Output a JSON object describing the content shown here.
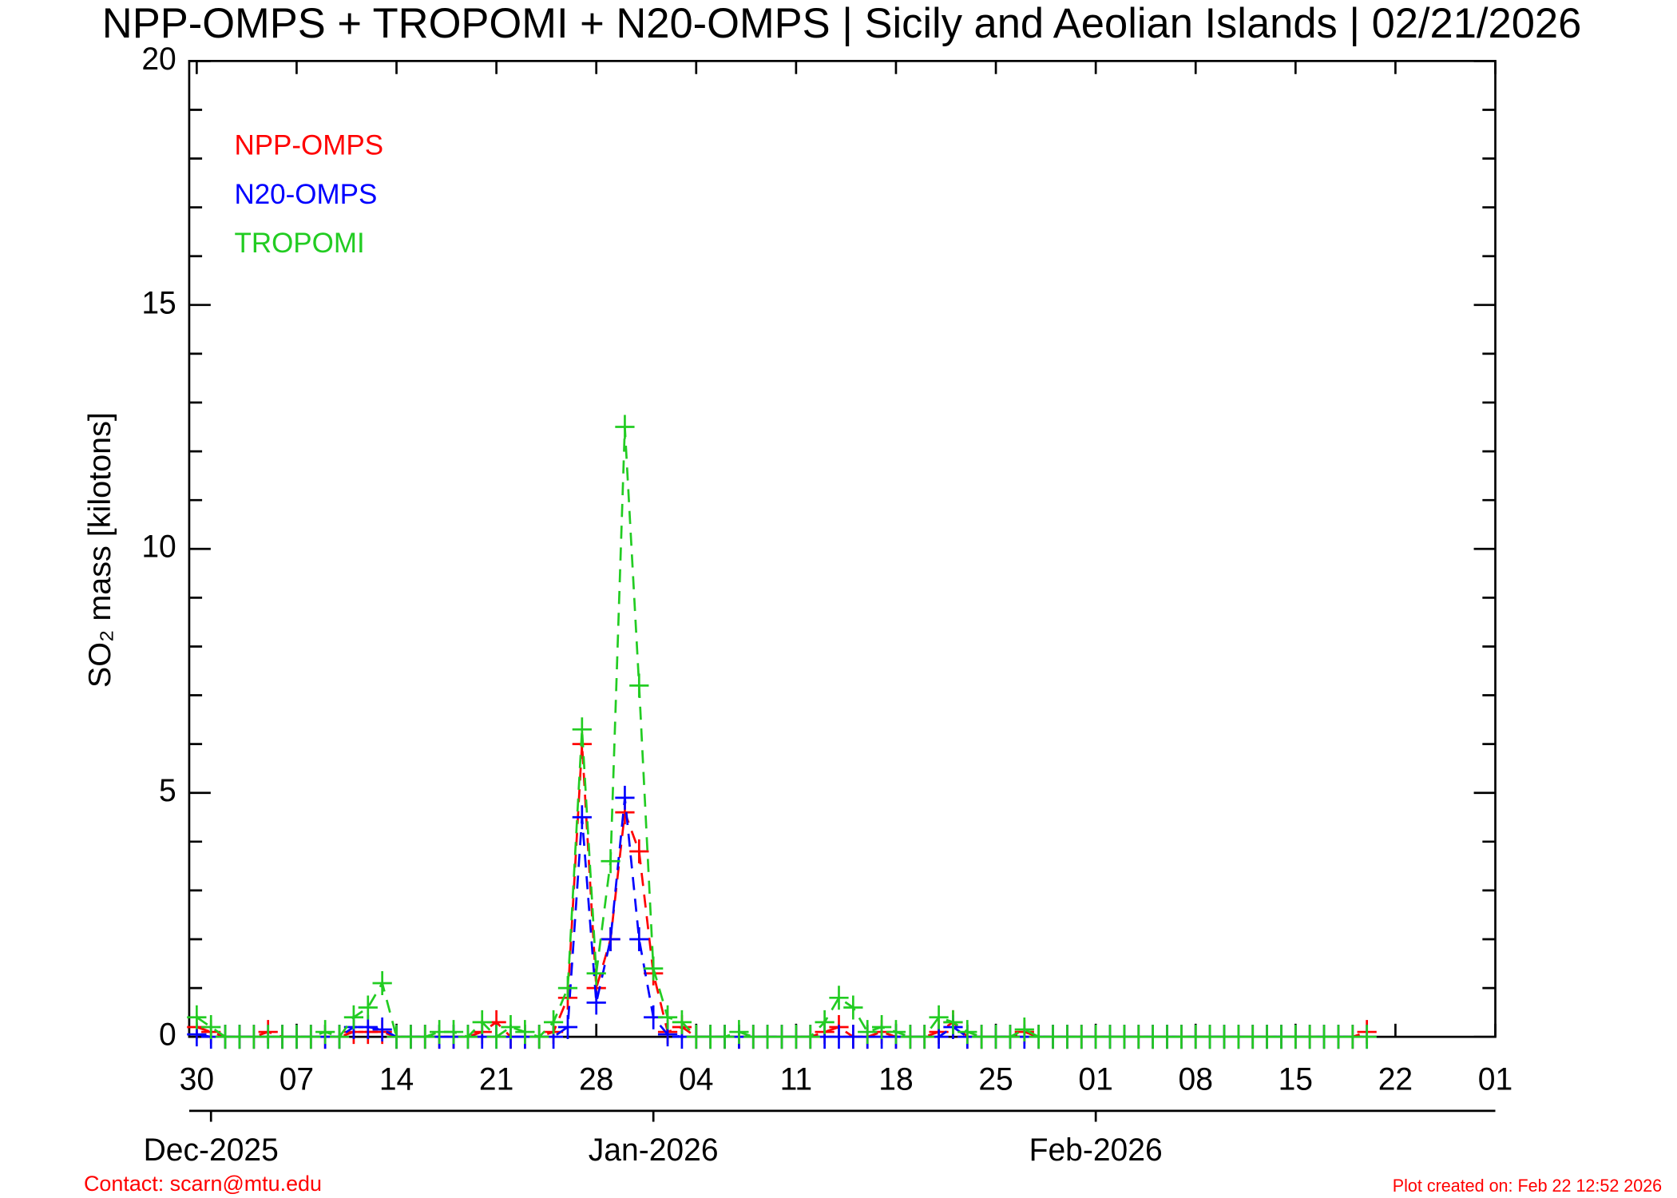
{
  "chart_data": {
    "type": "line",
    "title": "NPP-OMPS + TROPOMI + N20-OMPS | Sicily and Aeolian Islands | 02/21/2026",
    "y_label": "SO₂ mass [kilotons]",
    "contact": "Contact: scarn@mtu.edu",
    "created": "Plot created on: Feb 22 12:52 2026",
    "x": [
      "2025-11-30",
      "2025-12-01",
      "2025-12-02",
      "2025-12-03",
      "2025-12-04",
      "2025-12-05",
      "2025-12-06",
      "2025-12-07",
      "2025-12-08",
      "2025-12-09",
      "2025-12-10",
      "2025-12-11",
      "2025-12-12",
      "2025-12-13",
      "2025-12-14",
      "2025-12-15",
      "2025-12-16",
      "2025-12-17",
      "2025-12-18",
      "2025-12-19",
      "2025-12-20",
      "2025-12-21",
      "2025-12-22",
      "2025-12-23",
      "2025-12-24",
      "2025-12-25",
      "2025-12-26",
      "2025-12-27",
      "2025-12-28",
      "2025-12-29",
      "2025-12-30",
      "2025-12-31",
      "2026-01-01",
      "2026-01-02",
      "2026-01-03",
      "2026-01-04",
      "2026-01-05",
      "2026-01-06",
      "2026-01-07",
      "2026-01-08",
      "2026-01-09",
      "2026-01-10",
      "2026-01-11",
      "2026-01-12",
      "2026-01-13",
      "2026-01-14",
      "2026-01-15",
      "2026-01-16",
      "2026-01-17",
      "2026-01-18",
      "2026-01-19",
      "2026-01-20",
      "2026-01-21",
      "2026-01-22",
      "2026-01-23",
      "2026-01-24",
      "2026-01-25",
      "2026-01-26",
      "2026-01-27",
      "2026-01-28",
      "2026-01-29",
      "2026-01-30",
      "2026-01-31",
      "2026-02-01",
      "2026-02-02",
      "2026-02-03",
      "2026-02-04",
      "2026-02-05",
      "2026-02-06",
      "2026-02-07",
      "2026-02-08",
      "2026-02-09",
      "2026-02-10",
      "2026-02-11",
      "2026-02-12",
      "2026-02-13",
      "2026-02-14",
      "2026-02-15",
      "2026-02-16",
      "2026-02-17",
      "2026-02-18",
      "2026-02-19",
      "2026-02-20"
    ],
    "series": [
      {
        "name": "NPP-OMPS",
        "color": "#ff0000",
        "values": [
          0.2,
          0.1,
          0,
          0,
          0,
          0.1,
          0,
          0,
          0,
          0,
          0,
          0.1,
          0.1,
          0.1,
          0,
          0,
          0,
          0,
          0,
          0,
          0.1,
          0.3,
          0,
          0,
          0,
          0.1,
          0.8,
          6.0,
          1.0,
          2.0,
          4.6,
          3.8,
          1.3,
          0.1,
          0.2,
          0,
          0,
          0,
          0,
          0,
          0,
          0,
          0,
          0,
          0.1,
          0.2,
          0,
          0,
          0.1,
          0,
          0,
          0,
          0.1,
          0.3,
          0,
          0,
          0,
          0,
          0.1,
          0,
          0,
          0,
          0,
          0,
          0,
          0,
          0,
          0,
          0,
          0,
          0,
          0,
          0,
          0,
          0,
          0,
          0,
          0,
          0,
          0,
          0,
          0,
          0.1
        ]
      },
      {
        "name": "N20-OMPS",
        "color": "#0000ff",
        "values": [
          0.05,
          0,
          0,
          0,
          0,
          0,
          0,
          0,
          0,
          0,
          0,
          0.2,
          0.2,
          0.15,
          0,
          0,
          0,
          0,
          0,
          0,
          0,
          0,
          0,
          0,
          0,
          0,
          0.2,
          4.5,
          0.7,
          2.0,
          4.9,
          2.0,
          0.4,
          0.05,
          0,
          0,
          0,
          0,
          0,
          0,
          0,
          0,
          0,
          0,
          0,
          0,
          0,
          0,
          0,
          0,
          0,
          0,
          0,
          0.2,
          0,
          0,
          0,
          0,
          0,
          0,
          0,
          0,
          0,
          0,
          0,
          0,
          0,
          0,
          0,
          0,
          0,
          0,
          0,
          0,
          0,
          0,
          0,
          0,
          0,
          0,
          0,
          0,
          0
        ]
      },
      {
        "name": "TROPOMI",
        "color": "#22cc22",
        "values": [
          0.4,
          0.2,
          0,
          0,
          0,
          0,
          0,
          0,
          0,
          0.1,
          0,
          0.4,
          0.6,
          1.1,
          0,
          0,
          0,
          0.1,
          0.1,
          0,
          0.3,
          0,
          0.2,
          0.1,
          0,
          0.3,
          1.0,
          6.3,
          1.3,
          3.6,
          12.5,
          7.2,
          1.4,
          0.4,
          0.3,
          0,
          0,
          0,
          0.1,
          0,
          0,
          0,
          0,
          0,
          0.3,
          0.8,
          0.6,
          0.1,
          0.2,
          0.1,
          0,
          0,
          0.4,
          0.3,
          0.1,
          0,
          0,
          0,
          0.15,
          0,
          0,
          0,
          0,
          0,
          0,
          0,
          0,
          0,
          0,
          0,
          0,
          0,
          0,
          0,
          0,
          0,
          0,
          0,
          0,
          0,
          0,
          0,
          0
        ]
      }
    ],
    "xlim": [
      "2025-11-30",
      "2026-03-01"
    ],
    "xticks": [
      {
        "value": "2025-11-30",
        "label": "30"
      },
      {
        "value": "2025-12-07",
        "label": "07"
      },
      {
        "value": "2025-12-14",
        "label": "14"
      },
      {
        "value": "2025-12-21",
        "label": "21"
      },
      {
        "value": "2025-12-28",
        "label": "28"
      },
      {
        "value": "2026-01-04",
        "label": "04"
      },
      {
        "value": "2026-01-11",
        "label": "11"
      },
      {
        "value": "2026-01-18",
        "label": "18"
      },
      {
        "value": "2026-01-25",
        "label": "25"
      },
      {
        "value": "2026-02-01",
        "label": "01"
      },
      {
        "value": "2026-02-08",
        "label": "08"
      },
      {
        "value": "2026-02-15",
        "label": "15"
      },
      {
        "value": "2026-02-22",
        "label": "22"
      },
      {
        "value": "2026-03-01",
        "label": "01"
      }
    ],
    "month_ticks": [
      {
        "value": "2025-12-01",
        "label": "Dec-2025"
      },
      {
        "value": "2026-01-01",
        "label": "Jan-2026"
      },
      {
        "value": "2026-02-01",
        "label": "Feb-2026"
      }
    ],
    "ylim": [
      0,
      20
    ],
    "yticks": [
      0,
      5,
      10,
      15,
      20
    ],
    "yminorticks": [
      1,
      2,
      3,
      4,
      6,
      7,
      8,
      9,
      11,
      12,
      13,
      14,
      16,
      17,
      18,
      19
    ],
    "legend": "top-left",
    "line_style": "dashed",
    "marker": "+"
  }
}
